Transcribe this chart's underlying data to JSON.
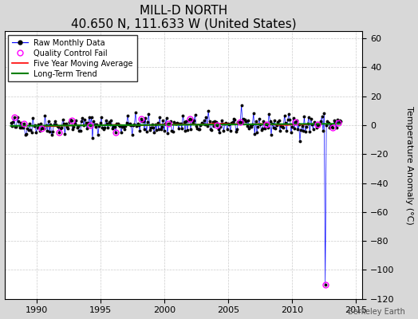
{
  "title": "MILL-D NORTH",
  "subtitle": "40.650 N, 111.633 W (United States)",
  "ylabel": "Temperature Anomaly (°C)",
  "watermark": "Berkeley Earth",
  "xlim": [
    1987.5,
    2015.5
  ],
  "ylim": [
    -120,
    65
  ],
  "yticks": [
    -120,
    -100,
    -80,
    -60,
    -40,
    -20,
    0,
    20,
    40,
    60
  ],
  "xticks": [
    1990,
    1995,
    2000,
    2005,
    2010,
    2015
  ],
  "bg_color": "#d8d8d8",
  "plot_bg_color": "#ffffff",
  "raw_line_color": "blue",
  "raw_marker_color": "black",
  "qc_fail_color": "magenta",
  "moving_avg_color": "red",
  "trend_color": "green",
  "spike_x": 2012.6,
  "spike_y": -110.0,
  "seed": 42,
  "n_points": 300,
  "noise_scale": 3.5,
  "title_fontsize": 11,
  "subtitle_fontsize": 9,
  "ylabel_fontsize": 8,
  "tick_fontsize": 8,
  "legend_fontsize": 7
}
